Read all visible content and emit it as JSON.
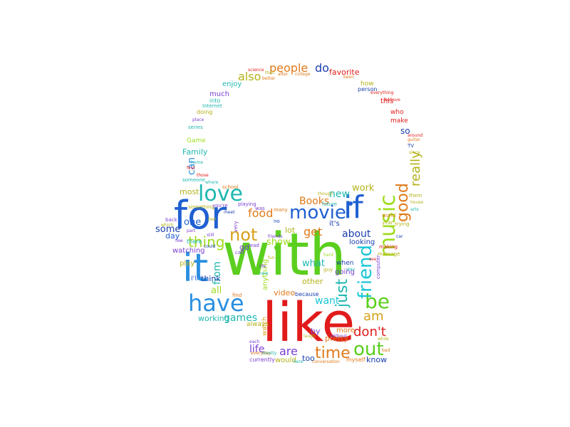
{
  "palette": {
    "blue": "#1f5fd1",
    "red": "#e11b1b",
    "green": "#5bcf1e",
    "orange": "#e07a1a",
    "teal": "#1fb7b0",
    "olive": "#b4b21a",
    "purple": "#7a3fd1",
    "sky": "#2a8fe0",
    "lime": "#9fdc1f",
    "navy": "#1a3fae",
    "gold": "#d6a21a",
    "magenta": "#d21f8f",
    "cyan": "#18c6d6"
  },
  "words": [
    {
      "text": "with",
      "color": "lime"
    },
    {
      "text": "like",
      "color": "red"
    },
    {
      "text": "for",
      "color": "blue"
    },
    {
      "text": "it",
      "color": "sky"
    },
    {
      "text": "if",
      "color": "blue"
    },
    {
      "text": "have",
      "color": "sky"
    },
    {
      "text": "movie",
      "color": "blue"
    },
    {
      "text": "love",
      "color": "teal"
    },
    {
      "text": "not",
      "color": "gold"
    },
    {
      "text": "music",
      "color": "lime"
    },
    {
      "text": "good",
      "color": "orange"
    },
    {
      "text": "really",
      "color": "olive"
    },
    {
      "text": "be",
      "color": "green"
    },
    {
      "text": "just",
      "color": "teal"
    },
    {
      "text": "friend",
      "color": "cyan"
    },
    {
      "text": "out",
      "color": "green"
    },
    {
      "text": "time",
      "color": "orange"
    },
    {
      "text": "am",
      "color": "gold"
    },
    {
      "text": "don't",
      "color": "red"
    },
    {
      "text": "people",
      "color": "orange"
    },
    {
      "text": "do",
      "color": "navy"
    },
    {
      "text": "favorite",
      "color": "red"
    },
    {
      "text": "also",
      "color": "olive"
    },
    {
      "text": "thing",
      "color": "lime"
    },
    {
      "text": "from",
      "color": "teal"
    },
    {
      "text": "food",
      "color": "orange"
    },
    {
      "text": "Books",
      "color": "orange"
    },
    {
      "text": "new",
      "color": "teal"
    },
    {
      "text": "work",
      "color": "olive"
    },
    {
      "text": "get",
      "color": "orange"
    },
    {
      "text": "about",
      "color": "navy"
    },
    {
      "text": "show",
      "color": "lime"
    },
    {
      "text": "want",
      "color": "cyan"
    },
    {
      "text": "games",
      "color": "teal"
    },
    {
      "text": "are",
      "color": "purple"
    },
    {
      "text": "life",
      "color": "purple"
    },
    {
      "text": "know",
      "color": "navy"
    },
    {
      "text": "all",
      "color": "lime"
    },
    {
      "text": "think",
      "color": "navy"
    },
    {
      "text": "working",
      "color": "teal"
    },
    {
      "text": "some",
      "color": "navy"
    },
    {
      "text": "one",
      "color": "blue"
    },
    {
      "text": "day",
      "color": "blue"
    },
    {
      "text": "most",
      "color": "olive"
    },
    {
      "text": "can",
      "color": "sky"
    },
    {
      "text": "Family",
      "color": "teal"
    },
    {
      "text": "so",
      "color": "navy"
    },
    {
      "text": "make",
      "color": "red"
    },
    {
      "text": "much",
      "color": "purple"
    },
    {
      "text": "enjoy",
      "color": "teal"
    },
    {
      "text": "how",
      "color": "olive"
    },
    {
      "text": "by",
      "color": "purple"
    },
    {
      "text": "too",
      "color": "navy"
    },
    {
      "text": "video",
      "color": "orange"
    },
    {
      "text": "other",
      "color": "olive"
    },
    {
      "text": "what",
      "color": "teal"
    },
    {
      "text": "going",
      "color": "purple"
    },
    {
      "text": "when",
      "color": "navy"
    },
    {
      "text": "looking",
      "color": "navy"
    },
    {
      "text": "it's",
      "color": "navy"
    },
    {
      "text": "lot",
      "color": "olive"
    },
    {
      "text": "go",
      "color": "purple"
    },
    {
      "text": "play",
      "color": "olive"
    },
    {
      "text": "watching",
      "color": "purple"
    },
    {
      "text": "I'll",
      "color": "blue"
    },
    {
      "text": "pretty",
      "color": "orange"
    },
    {
      "text": "more",
      "color": "orange"
    },
    {
      "text": "would",
      "color": "olive"
    },
    {
      "text": "myself",
      "color": "orange"
    },
    {
      "text": "anything",
      "color": "lime"
    },
    {
      "text": "because",
      "color": "navy"
    },
    {
      "text": "always",
      "color": "olive"
    },
    {
      "text": "watch",
      "color": "gold"
    },
    {
      "text": "currently",
      "color": "purple"
    },
    {
      "text": "who",
      "color": "red"
    },
    {
      "text": "this",
      "color": "red"
    },
    {
      "text": "doing",
      "color": "olive"
    },
    {
      "text": "into",
      "color": "teal"
    },
    {
      "text": "Internet",
      "color": "teal"
    },
    {
      "text": "series",
      "color": "teal"
    },
    {
      "text": "Game",
      "color": "lime"
    },
    {
      "text": "someone",
      "color": "teal"
    },
    {
      "text": "there",
      "color": "teal"
    },
    {
      "text": "something",
      "color": "olive"
    },
    {
      "text": "you're",
      "color": "purple"
    },
    {
      "text": "playing",
      "color": "purple"
    },
    {
      "text": "school",
      "color": "orange"
    },
    {
      "text": "many",
      "color": "orange"
    },
    {
      "text": "future",
      "color": "teal"
    },
    {
      "text": "them",
      "color": "olive"
    },
    {
      "text": "TV",
      "color": "navy"
    },
    {
      "text": "year",
      "color": "olive"
    },
    {
      "text": "world",
      "color": "orange"
    },
    {
      "text": "making",
      "color": "red"
    },
    {
      "text": "trying",
      "color": "olive"
    },
    {
      "text": "person",
      "color": "navy"
    },
    {
      "text": "everything",
      "color": "red"
    },
    {
      "text": "science",
      "color": "red"
    },
    {
      "text": "college",
      "color": "orange"
    },
    {
      "text": "after",
      "color": "orange"
    },
    {
      "text": "better",
      "color": "orange"
    },
    {
      "text": "been",
      "color": "orange"
    },
    {
      "text": "than",
      "color": "olive"
    },
    {
      "text": "computer",
      "color": "purple"
    },
    {
      "text": "way",
      "color": "teal"
    },
    {
      "text": "very",
      "color": "purple"
    },
    {
      "text": "was",
      "color": "purple"
    },
    {
      "text": "no",
      "color": "navy"
    },
    {
      "text": "read",
      "color": "purple"
    },
    {
      "text": "find",
      "color": "orange"
    },
    {
      "text": "guy",
      "color": "olive"
    },
    {
      "text": "see",
      "color": "red"
    },
    {
      "text": "conversation",
      "color": "orange"
    },
    {
      "text": "here",
      "color": "teal"
    },
    {
      "text": "message",
      "color": "olive"
    },
    {
      "text": "hard",
      "color": "lime"
    },
    {
      "text": "home",
      "color": "teal"
    },
    {
      "text": "those",
      "color": "red"
    },
    {
      "text": "part",
      "color": "purple"
    },
    {
      "text": "since",
      "color": "olive"
    },
    {
      "text": "car",
      "color": "navy"
    },
    {
      "text": "first",
      "color": "red"
    },
    {
      "text": "feel",
      "color": "olive"
    },
    {
      "text": "where",
      "color": "teal"
    },
    {
      "text": "back",
      "color": "purple"
    },
    {
      "text": "which",
      "color": "olive"
    },
    {
      "text": "few",
      "color": "purple"
    },
    {
      "text": "still",
      "color": "purple"
    },
    {
      "text": "meet",
      "color": "navy"
    },
    {
      "text": "could",
      "color": "navy"
    },
    {
      "text": "call",
      "color": "purple"
    },
    {
      "text": "fun",
      "color": "olive"
    },
    {
      "text": "life",
      "color": "purple"
    },
    {
      "text": "new",
      "color": "teal"
    },
    {
      "text": "laugh",
      "color": "olive"
    },
    {
      "text": "without",
      "color": "purple"
    },
    {
      "text": "while",
      "color": "olive"
    },
    {
      "text": "bad",
      "color": "orange"
    },
    {
      "text": "each",
      "color": "purple"
    },
    {
      "text": "everyday",
      "color": "orange"
    },
    {
      "text": "mostly",
      "color": "teal"
    },
    {
      "text": "place",
      "color": "purple"
    },
    {
      "text": "believe",
      "color": "red"
    },
    {
      "text": "guitar",
      "color": "orange"
    },
    {
      "text": "around",
      "color": "red"
    },
    {
      "text": "house",
      "color": "olive"
    },
    {
      "text": "arts",
      "color": "teal"
    },
    {
      "text": "though",
      "color": "olive"
    },
    {
      "text": "friends",
      "color": "purple"
    }
  ]
}
